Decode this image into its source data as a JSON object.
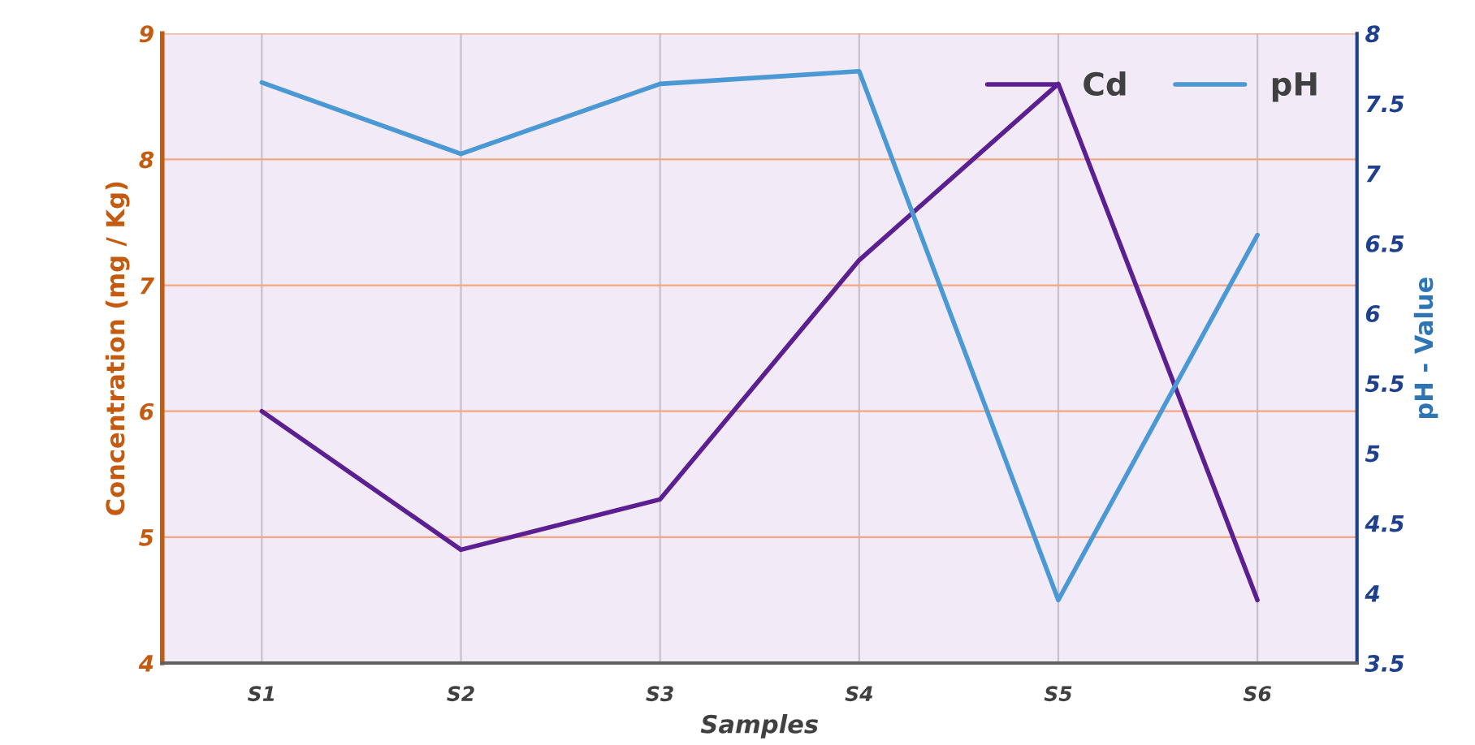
{
  "chart_data": {
    "type": "line",
    "xlabel": "Samples",
    "ylabel": "Concentration (mg / Kg)",
    "y2label": "pH - Value",
    "categories": [
      "S1",
      "S2",
      "S3",
      "S4",
      "S5",
      "S6"
    ],
    "series": [
      {
        "name": "Cd",
        "color": "#5b1f91",
        "values": [
          6.0,
          4.9,
          5.3,
          7.2,
          8.6,
          4.5
        ]
      },
      {
        "name": "pH",
        "color": "#4a98d4",
        "axis": "y2",
        "values": [
          7.65,
          7.14,
          7.64,
          7.73,
          3.95,
          6.56
        ]
      }
    ],
    "ylim": [
      4,
      9
    ],
    "yticks": [
      4,
      5,
      6,
      7,
      8,
      9
    ],
    "y2lim": [
      3.5,
      8
    ],
    "y2ticks": [
      3.5,
      4,
      4.5,
      5,
      5.5,
      6,
      6.5,
      7,
      7.5,
      8
    ],
    "grid": true,
    "legend": "top right",
    "marker": "none",
    "line_style": "solid"
  }
}
